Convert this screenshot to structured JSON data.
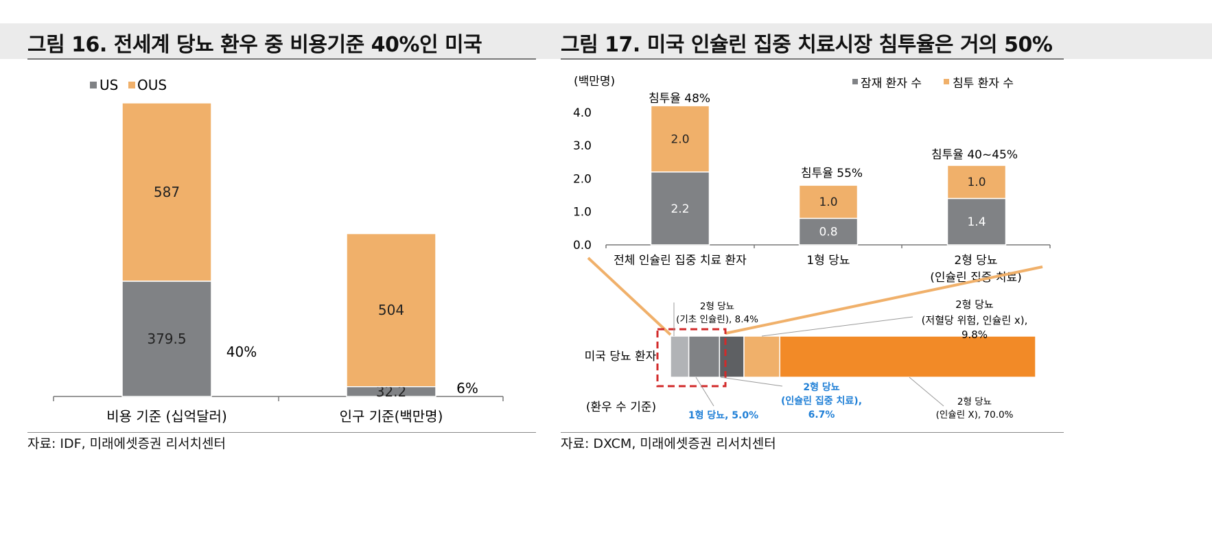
{
  "left": {
    "title": "그림 16. 전세계 당뇨 환우 중 비용기준 40%인 미국",
    "source": "자료: IDF, 미래에셋증권 리서치센터"
  },
  "right": {
    "title": "그림 17. 미국 인슐린 집중 치료시장 침투율은 거의 50%",
    "source": "자료: DXCM, 미래에셋증권 리서치센터"
  },
  "colors": {
    "us": "#808285",
    "ous": "#f0b06a",
    "orange": "#f28a27",
    "light_gray": "#b1b3b6",
    "dark_gray": "#5e6063",
    "blue": "#1f7fd6",
    "red": "#d22a2a"
  },
  "chart_data": [
    {
      "type": "bar",
      "stacked": true,
      "legend": [
        "US",
        "OUS"
      ],
      "legend_placement": "top-left",
      "categories": [
        "비용 기준 (십억달러)",
        "인구 기준(백만명)"
      ],
      "series": [
        {
          "name": "US",
          "values": [
            379.5,
            32.2
          ],
          "labels": [
            "379.5",
            "32.2"
          ]
        },
        {
          "name": "OUS",
          "values": [
            587,
            504
          ],
          "labels": [
            "587",
            "504"
          ]
        }
      ],
      "annotations": [
        "40%",
        "6%"
      ],
      "ylim": [
        0,
        966.5
      ],
      "grid": false
    },
    {
      "type": "bar",
      "stacked": true,
      "ylabel": "(백만명)",
      "yticks": [
        "0.0",
        "1.0",
        "2.0",
        "3.0",
        "4.0"
      ],
      "ylim": [
        0,
        4.4
      ],
      "legend": [
        "잠재 환자 수",
        "침투 환자 수"
      ],
      "legend_placement": "top-right",
      "categories": [
        "전체 인슐린 집중 치료 환자",
        "1형 당뇨",
        "2형 당뇨"
      ],
      "category_sublabels": [
        "",
        "",
        "(인슐린 집중 치료)"
      ],
      "series": [
        {
          "name": "잠재 환자 수",
          "values": [
            2.2,
            0.8,
            1.4
          ],
          "labels": [
            "2.2",
            "0.8",
            "1.4"
          ]
        },
        {
          "name": "침투 환자 수",
          "values": [
            2.0,
            1.0,
            1.0
          ],
          "labels": [
            "2.0",
            "1.0",
            "1.0"
          ]
        }
      ],
      "annotations": [
        "침투율 48%",
        "침투율 55%",
        "침투율 40~45%"
      ],
      "grid": false
    },
    {
      "type": "bar",
      "orientation": "horizontal",
      "stacked": true,
      "category_label": "미국 당뇨 환자",
      "category_sublabel": "(환우 수 기준)",
      "segments": [
        {
          "value": 5.0,
          "label": "1형 당뇨, 5.0%",
          "color_key": "light_gray"
        },
        {
          "value": 8.4,
          "label_line1": "2형 당뇨",
          "label_line2": "(기초 인슐린), 8.4%",
          "color_key": "us"
        },
        {
          "value": 6.7,
          "label_line1": "2형 당뇨",
          "label_line2": "(인슐린 집중 치료),",
          "label_line3": "6.7%",
          "color_key": "dark_gray"
        },
        {
          "value": 9.8,
          "label_line1": "2형 당뇨",
          "label_line2": "(저혈당 위험, 인슐린 x),",
          "label_line3": "9.8%",
          "color_key": "ous"
        },
        {
          "value": 70.0,
          "label_line1": "2형 당뇨",
          "label_line2": "(인슐린 X), 70.0%",
          "color_key": "orange"
        }
      ]
    }
  ]
}
